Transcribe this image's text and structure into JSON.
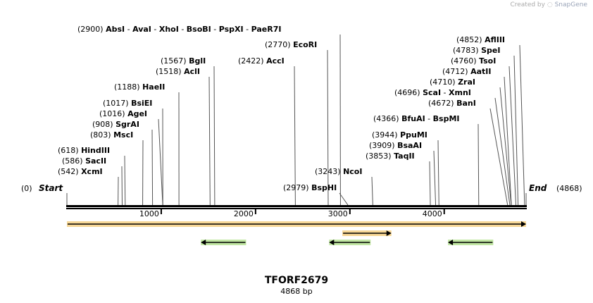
{
  "brand": {
    "created_by": "Created by",
    "app_name": "SnapGene",
    "logo_icon": "snapgene-logo-icon"
  },
  "plasmid": {
    "name": "TFORF2679",
    "length_label": "4868 bp",
    "length": 4868
  },
  "ends": {
    "start_label": "Start",
    "start_pos": "(0)",
    "end_label": "End",
    "end_pos": "(4868)"
  },
  "ruler_ticks": [
    {
      "pos": 1000,
      "label": "1000"
    },
    {
      "pos": 2000,
      "label": "2000"
    },
    {
      "pos": 3000,
      "label": "3000"
    },
    {
      "pos": 4000,
      "label": "4000"
    }
  ],
  "sites": [
    {
      "pos_label": "(542)",
      "names": [
        "XcmI"
      ],
      "cut": 542
    },
    {
      "pos_label": "(586)",
      "names": [
        "SacII"
      ],
      "cut": 586
    },
    {
      "pos_label": "(618)",
      "names": [
        "HindIII"
      ],
      "cut": 618
    },
    {
      "pos_label": "(803)",
      "names": [
        "MscI"
      ],
      "cut": 803
    },
    {
      "pos_label": "(908)",
      "names": [
        "SgrAI"
      ],
      "cut": 908
    },
    {
      "pos_label": "(1016)",
      "names": [
        "AgeI"
      ],
      "cut": 1016
    },
    {
      "pos_label": "(1017)",
      "names": [
        "BsiEI"
      ],
      "cut": 1017
    },
    {
      "pos_label": "(1188)",
      "names": [
        "HaeII"
      ],
      "cut": 1188
    },
    {
      "pos_label": "(1518)",
      "names": [
        "AclI"
      ],
      "cut": 1518
    },
    {
      "pos_label": "(1567)",
      "names": [
        "BglI"
      ],
      "cut": 1567
    },
    {
      "pos_label": "(2422)",
      "names": [
        "AccI"
      ],
      "cut": 2422
    },
    {
      "pos_label": "(2770)",
      "names": [
        "EcoRI"
      ],
      "cut": 2770
    },
    {
      "pos_label": "(2900)",
      "names": [
        "AbsI",
        "AvaI",
        "XhoI",
        "BsoBI",
        "PspXI",
        "PaeR7I"
      ],
      "cut": 2900
    },
    {
      "pos_label": "(2979)",
      "names": [
        "BspHI"
      ],
      "cut": 2979
    },
    {
      "pos_label": "(3243)",
      "names": [
        "NcoI"
      ],
      "cut": 3243
    },
    {
      "pos_label": "(3853)",
      "names": [
        "TaqII"
      ],
      "cut": 3853
    },
    {
      "pos_label": "(3909)",
      "names": [
        "BsaAI"
      ],
      "cut": 3909
    },
    {
      "pos_label": "(3944)",
      "names": [
        "PpuMI"
      ],
      "cut": 3944
    },
    {
      "pos_label": "(4366)",
      "names": [
        "BfuAI",
        "BspMI"
      ],
      "cut": 4366
    },
    {
      "pos_label": "(4672)",
      "names": [
        "BanI"
      ],
      "cut": 4672
    },
    {
      "pos_label": "(4696)",
      "names": [
        "ScaI",
        "XmnI"
      ],
      "cut": 4696
    },
    {
      "pos_label": "(4710)",
      "names": [
        "ZraI"
      ],
      "cut": 4710
    },
    {
      "pos_label": "(4712)",
      "names": [
        "AatII"
      ],
      "cut": 4712
    },
    {
      "pos_label": "(4760)",
      "names": [
        "TsoI"
      ],
      "cut": 4760
    },
    {
      "pos_label": "(4783)",
      "names": [
        "SpeI"
      ],
      "cut": 4783
    },
    {
      "pos_label": "(4852)",
      "names": [
        "AflIII"
      ],
      "cut": 4852
    }
  ],
  "features": [
    {
      "name": "orange-forward-feature-long",
      "start": 0,
      "end": 4868,
      "direction": "forward",
      "color": "#f0b640"
    },
    {
      "name": "orange-forward-feature-short",
      "start": 2920,
      "end": 3440,
      "direction": "forward",
      "color": "#f0b640"
    },
    {
      "name": "green-reverse-feature-1",
      "start": 1420,
      "end": 1900,
      "direction": "reverse",
      "color": "#8fd35a"
    },
    {
      "name": "green-reverse-feature-2",
      "start": 2780,
      "end": 3220,
      "direction": "reverse",
      "color": "#8fd35a"
    },
    {
      "name": "green-reverse-feature-3",
      "start": 4040,
      "end": 4520,
      "direction": "reverse",
      "color": "#8fd35a"
    }
  ],
  "colors": {
    "backbone": "#000000",
    "leader": "#555555",
    "brand": "#aaaaaa"
  }
}
